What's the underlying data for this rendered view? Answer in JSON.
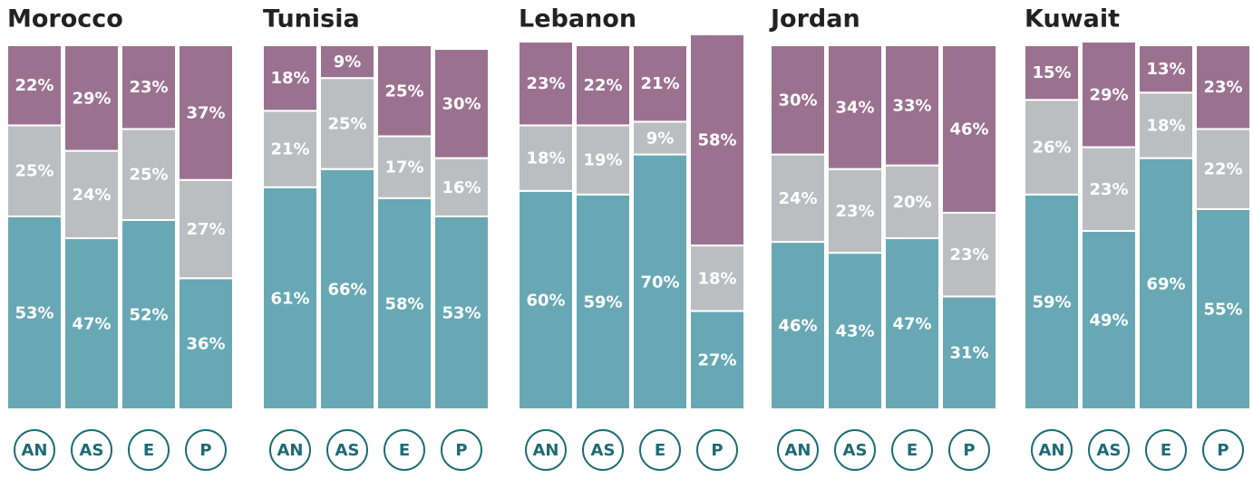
{
  "chart_data": [
    {
      "type": "bar",
      "stacked": true,
      "title": "Morocco",
      "categories": [
        "AN",
        "AS",
        "E",
        "P"
      ],
      "ylim": [
        0,
        100
      ],
      "series": [
        {
          "color": "#68a8b5",
          "values": [
            53,
            47,
            52,
            36
          ],
          "value_labels": [
            "53%",
            "47%",
            "52%",
            "36%"
          ]
        },
        {
          "color": "#bcbdc0",
          "values": [
            25,
            24,
            25,
            27
          ],
          "value_labels": [
            "25%",
            "24%",
            "25%",
            "27%"
          ]
        },
        {
          "color": "#9b7190",
          "values": [
            22,
            29,
            23,
            37
          ],
          "value_labels": [
            "22%",
            "29%",
            "23%",
            "37%"
          ]
        }
      ]
    },
    {
      "type": "bar",
      "stacked": true,
      "title": "Tunisia",
      "categories": [
        "AN",
        "AS",
        "E",
        "P"
      ],
      "ylim": [
        0,
        100
      ],
      "series": [
        {
          "color": "#68a8b5",
          "values": [
            61,
            66,
            58,
            53
          ],
          "value_labels": [
            "61%",
            "66%",
            "58%",
            "53%"
          ]
        },
        {
          "color": "#bcbdc0",
          "values": [
            21,
            25,
            17,
            16
          ],
          "value_labels": [
            "21%",
            "25%",
            "17%",
            "16%"
          ]
        },
        {
          "color": "#9b7190",
          "values": [
            18,
            9,
            25,
            30
          ],
          "value_labels": [
            "18%",
            "9%",
            "25%",
            "30%"
          ]
        }
      ]
    },
    {
      "type": "bar",
      "stacked": true,
      "title": "Lebanon",
      "categories": [
        "AN",
        "AS",
        "E",
        "P"
      ],
      "ylim": [
        0,
        100
      ],
      "series": [
        {
          "color": "#68a8b5",
          "values": [
            60,
            59,
            70,
            27
          ],
          "value_labels": [
            "60%",
            "59%",
            "70%",
            "27%"
          ]
        },
        {
          "color": "#bcbdc0",
          "values": [
            18,
            19,
            9,
            18
          ],
          "value_labels": [
            "18%",
            "19%",
            "9%",
            "18%"
          ]
        },
        {
          "color": "#9b7190",
          "values": [
            23,
            22,
            21,
            58
          ],
          "value_labels": [
            "23%",
            "22%",
            "21%",
            "58%"
          ]
        }
      ]
    },
    {
      "type": "bar",
      "stacked": true,
      "title": "Jordan",
      "categories": [
        "AN",
        "AS",
        "E",
        "P"
      ],
      "ylim": [
        0,
        100
      ],
      "series": [
        {
          "color": "#68a8b5",
          "values": [
            46,
            43,
            47,
            31
          ],
          "value_labels": [
            "46%",
            "43%",
            "47%",
            "31%"
          ]
        },
        {
          "color": "#bcbdc0",
          "values": [
            24,
            23,
            20,
            23
          ],
          "value_labels": [
            "24%",
            "23%",
            "20%",
            "23%"
          ]
        },
        {
          "color": "#9b7190",
          "values": [
            30,
            34,
            33,
            46
          ],
          "value_labels": [
            "30%",
            "34%",
            "33%",
            "46%"
          ]
        }
      ]
    },
    {
      "type": "bar",
      "stacked": true,
      "title": "Kuwait",
      "categories": [
        "AN",
        "AS",
        "E",
        "P"
      ],
      "ylim": [
        0,
        100
      ],
      "series": [
        {
          "color": "#68a8b5",
          "values": [
            59,
            49,
            69,
            55
          ],
          "value_labels": [
            "59%",
            "49%",
            "69%",
            "55%"
          ]
        },
        {
          "color": "#bcbdc0",
          "values": [
            26,
            23,
            18,
            22
          ],
          "value_labels": [
            "26%",
            "23%",
            "18%",
            "22%"
          ]
        },
        {
          "color": "#9b7190",
          "values": [
            15,
            29,
            13,
            23
          ],
          "value_labels": [
            "15%",
            "29%",
            "13%",
            "23%"
          ]
        }
      ]
    }
  ]
}
